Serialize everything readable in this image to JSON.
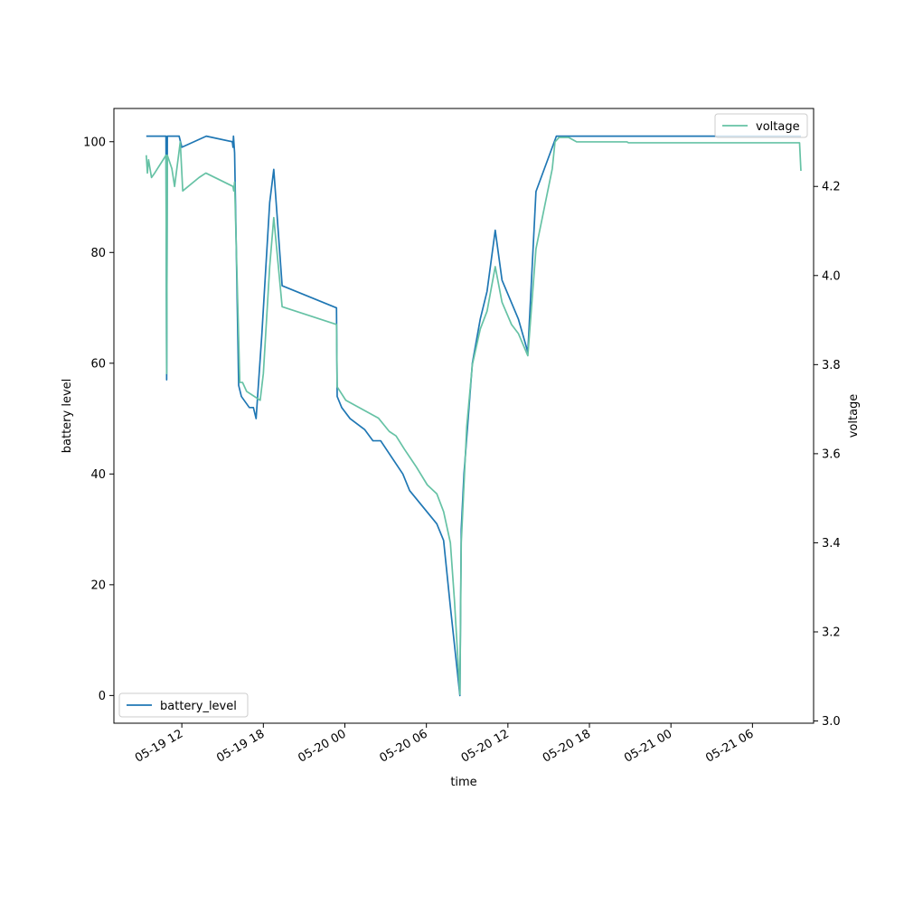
{
  "chart_data": {
    "type": "line",
    "title": "",
    "xlabel": "time",
    "ylabel": "battery level",
    "y2label": "voltage",
    "xlim": [
      "2019-05-19 07:00",
      "2019-05-21 10:30"
    ],
    "ylim": [
      -5,
      106
    ],
    "y2lim": [
      2.995,
      4.375
    ],
    "x_ticks": [
      {
        "value": "2019-05-19 12:00",
        "label": "05-19 12"
      },
      {
        "value": "2019-05-19 18:00",
        "label": "05-19 18"
      },
      {
        "value": "2019-05-20 00:00",
        "label": "05-20 00"
      },
      {
        "value": "2019-05-20 06:00",
        "label": "05-20 06"
      },
      {
        "value": "2019-05-20 12:00",
        "label": "05-20 12"
      },
      {
        "value": "2019-05-20 18:00",
        "label": "05-20 18"
      },
      {
        "value": "2019-05-21 00:00",
        "label": "05-21 00"
      },
      {
        "value": "2019-05-21 06:00",
        "label": "05-21 06"
      }
    ],
    "y_ticks": [
      {
        "value": 0,
        "label": "0"
      },
      {
        "value": 20,
        "label": "20"
      },
      {
        "value": 40,
        "label": "40"
      },
      {
        "value": 60,
        "label": "60"
      },
      {
        "value": 80,
        "label": "80"
      },
      {
        "value": 100,
        "label": "100"
      }
    ],
    "y2_ticks": [
      {
        "value": 3.0,
        "label": "3.0"
      },
      {
        "value": 3.2,
        "label": "3.2"
      },
      {
        "value": 3.4,
        "label": "3.4"
      },
      {
        "value": 3.6,
        "label": "3.6"
      },
      {
        "value": 3.8,
        "label": "3.8"
      },
      {
        "value": 4.0,
        "label": "4.0"
      },
      {
        "value": 4.2,
        "label": "4.2"
      }
    ],
    "grid": false,
    "series": [
      {
        "name": "battery_level",
        "axis": "left",
        "color": "#1f77b4",
        "legend_position": "lower-left",
        "points": [
          [
            "2019-05-19 09:23",
            101
          ],
          [
            "2019-05-19 10:00",
            101
          ],
          [
            "2019-05-19 10:50",
            101
          ],
          [
            "2019-05-19 10:53",
            57
          ],
          [
            "2019-05-19 10:56",
            101
          ],
          [
            "2019-05-19 11:48",
            101
          ],
          [
            "2019-05-19 12:00",
            99
          ],
          [
            "2019-05-19 13:48",
            101
          ],
          [
            "2019-05-19 15:43",
            100
          ],
          [
            "2019-05-19 15:46",
            99
          ],
          [
            "2019-05-19 15:48",
            101
          ],
          [
            "2019-05-19 15:53",
            98
          ],
          [
            "2019-05-19 16:11",
            56
          ],
          [
            "2019-05-19 16:23",
            54
          ],
          [
            "2019-05-19 16:58",
            52
          ],
          [
            "2019-05-19 17:16",
            52
          ],
          [
            "2019-05-19 17:28",
            50
          ],
          [
            "2019-05-19 17:53",
            65
          ],
          [
            "2019-05-19 18:28",
            89
          ],
          [
            "2019-05-19 18:46",
            95
          ],
          [
            "2019-05-19 19:23",
            74
          ],
          [
            "2019-05-19 23:23",
            70
          ],
          [
            "2019-05-19 23:26",
            54
          ],
          [
            "2019-05-19 23:46",
            52
          ],
          [
            "2019-05-20 00:23",
            50
          ],
          [
            "2019-05-20 01:28",
            48
          ],
          [
            "2019-05-20 02:04",
            46
          ],
          [
            "2019-05-20 02:38",
            46
          ],
          [
            "2019-05-20 04:16",
            40
          ],
          [
            "2019-05-20 04:46",
            37
          ],
          [
            "2019-05-20 06:46",
            31
          ],
          [
            "2019-05-20 07:16",
            28
          ],
          [
            "2019-05-20 07:46",
            16
          ],
          [
            "2019-05-20 08:28",
            0
          ],
          [
            "2019-05-20 08:34",
            30
          ],
          [
            "2019-05-20 08:46",
            40
          ],
          [
            "2019-05-20 09:23",
            60
          ],
          [
            "2019-05-20 09:58",
            68
          ],
          [
            "2019-05-20 10:28",
            73
          ],
          [
            "2019-05-20 11:04",
            84
          ],
          [
            "2019-05-20 11:34",
            75
          ],
          [
            "2019-05-20 12:46",
            68
          ],
          [
            "2019-05-20 13:28",
            62
          ],
          [
            "2019-05-20 14:04",
            91
          ],
          [
            "2019-05-20 15:34",
            101
          ],
          [
            "2019-05-20 20:00",
            101
          ],
          [
            "2019-05-21 09:34",
            101
          ]
        ]
      },
      {
        "name": "voltage",
        "axis": "right",
        "color": "#66c2a5",
        "legend_position": "upper-right",
        "points": [
          [
            "2019-05-19 09:23",
            4.27
          ],
          [
            "2019-05-19 09:28",
            4.23
          ],
          [
            "2019-05-19 09:33",
            4.26
          ],
          [
            "2019-05-19 09:46",
            4.22
          ],
          [
            "2019-05-19 10:00",
            4.23
          ],
          [
            "2019-05-19 10:50",
            4.27
          ],
          [
            "2019-05-19 10:53",
            3.78
          ],
          [
            "2019-05-19 10:56",
            4.27
          ],
          [
            "2019-05-19 11:16",
            4.24
          ],
          [
            "2019-05-19 11:28",
            4.2
          ],
          [
            "2019-05-19 11:53",
            4.3
          ],
          [
            "2019-05-19 12:04",
            4.19
          ],
          [
            "2019-05-19 13:16",
            4.22
          ],
          [
            "2019-05-19 13:46",
            4.23
          ],
          [
            "2019-05-19 15:46",
            4.2
          ],
          [
            "2019-05-19 15:49",
            4.19
          ],
          [
            "2019-05-19 15:53",
            4.21
          ],
          [
            "2019-05-19 16:16",
            3.76
          ],
          [
            "2019-05-19 16:28",
            3.76
          ],
          [
            "2019-05-19 16:46",
            3.74
          ],
          [
            "2019-05-19 17:46",
            3.72
          ],
          [
            "2019-05-19 18:00",
            3.78
          ],
          [
            "2019-05-19 18:28",
            4.02
          ],
          [
            "2019-05-19 18:46",
            4.13
          ],
          [
            "2019-05-19 19:23",
            3.93
          ],
          [
            "2019-05-19 23:23",
            3.89
          ],
          [
            "2019-05-19 23:26",
            3.75
          ],
          [
            "2019-05-20 00:04",
            3.72
          ],
          [
            "2019-05-20 02:28",
            3.68
          ],
          [
            "2019-05-20 03:16",
            3.65
          ],
          [
            "2019-05-20 03:46",
            3.64
          ],
          [
            "2019-05-20 04:23",
            3.61
          ],
          [
            "2019-05-20 05:16",
            3.57
          ],
          [
            "2019-05-20 06:04",
            3.53
          ],
          [
            "2019-05-20 06:46",
            3.51
          ],
          [
            "2019-05-20 07:16",
            3.47
          ],
          [
            "2019-05-20 07:46",
            3.4
          ],
          [
            "2019-05-20 08:04",
            3.27
          ],
          [
            "2019-05-20 08:28",
            3.06
          ],
          [
            "2019-05-20 08:34",
            3.4
          ],
          [
            "2019-05-20 08:58",
            3.66
          ],
          [
            "2019-05-20 09:23",
            3.8
          ],
          [
            "2019-05-20 09:58",
            3.88
          ],
          [
            "2019-05-20 10:28",
            3.92
          ],
          [
            "2019-05-20 11:04",
            4.02
          ],
          [
            "2019-05-20 11:34",
            3.94
          ],
          [
            "2019-05-20 12:16",
            3.89
          ],
          [
            "2019-05-20 12:46",
            3.87
          ],
          [
            "2019-05-20 13:28",
            3.82
          ],
          [
            "2019-05-20 14:04",
            4.06
          ],
          [
            "2019-05-20 15:16",
            4.24
          ],
          [
            "2019-05-20 15:28",
            4.3
          ],
          [
            "2019-05-20 15:46",
            4.31
          ],
          [
            "2019-05-20 16:28",
            4.31
          ],
          [
            "2019-05-20 17:04",
            4.3
          ],
          [
            "2019-05-20 20:46",
            4.3
          ],
          [
            "2019-05-20 20:52",
            4.298
          ],
          [
            "2019-05-21 09:28",
            4.298
          ],
          [
            "2019-05-21 09:34",
            4.235
          ]
        ]
      }
    ]
  }
}
